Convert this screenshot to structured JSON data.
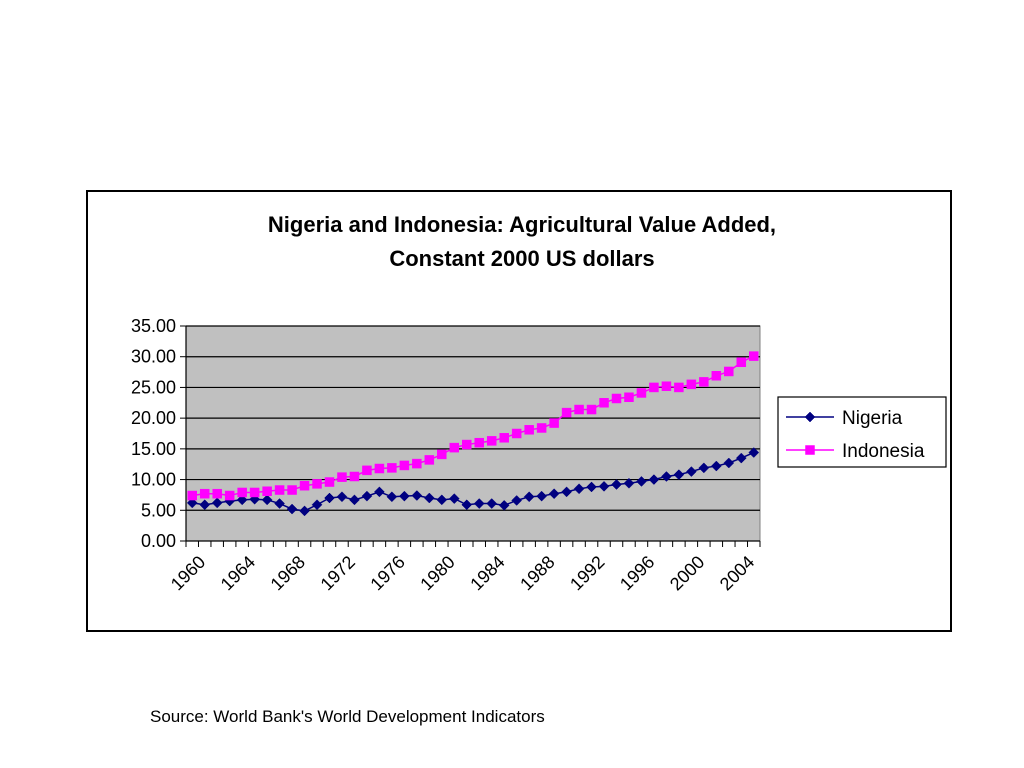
{
  "source_note": "Source: World Bank's World Development Indicators",
  "chart_data": {
    "type": "line",
    "title_lines": [
      "Nigeria and Indonesia: Agricultural Value Added,",
      "Constant 2000 US dollars"
    ],
    "xlabel": "",
    "ylabel": "",
    "x": [
      1960,
      1961,
      1962,
      1963,
      1964,
      1965,
      1966,
      1967,
      1968,
      1969,
      1970,
      1971,
      1972,
      1973,
      1974,
      1975,
      1976,
      1977,
      1978,
      1979,
      1980,
      1981,
      1982,
      1983,
      1984,
      1985,
      1986,
      1987,
      1988,
      1989,
      1990,
      1991,
      1992,
      1993,
      1994,
      1995,
      1996,
      1997,
      1998,
      1999,
      2000,
      2001,
      2002,
      2003,
      2004,
      2005
    ],
    "x_tick_labels": [
      "1960",
      "1964",
      "1968",
      "1972",
      "1976",
      "1980",
      "1984",
      "1988",
      "1992",
      "1996",
      "2000",
      "2004"
    ],
    "ylim": [
      0,
      35
    ],
    "y_ticks": [
      "0.00",
      "5.00",
      "10.00",
      "15.00",
      "20.00",
      "25.00",
      "30.00",
      "35.00"
    ],
    "grid": true,
    "plot_background": "#c0c0c0",
    "legend_position": "right",
    "series": [
      {
        "name": "Nigeria",
        "color": "#000080",
        "marker": "diamond",
        "values": [
          6.2,
          5.9,
          6.2,
          6.5,
          6.7,
          6.8,
          6.7,
          6.1,
          5.2,
          4.9,
          5.9,
          7.0,
          7.2,
          6.7,
          7.3,
          8.0,
          7.2,
          7.3,
          7.4,
          7.0,
          6.7,
          6.9,
          5.9,
          6.1,
          6.1,
          5.8,
          6.6,
          7.2,
          7.3,
          7.7,
          8.0,
          8.5,
          8.8,
          8.9,
          9.2,
          9.4,
          9.7,
          10.0,
          10.5,
          10.8,
          11.3,
          11.9,
          12.2,
          12.7,
          13.5,
          14.4
        ]
      },
      {
        "name": "Indonesia",
        "color": "#ff00ff",
        "marker": "square",
        "values": [
          7.4,
          7.7,
          7.7,
          7.4,
          7.9,
          7.9,
          8.1,
          8.3,
          8.3,
          9.0,
          9.3,
          9.6,
          10.4,
          10.5,
          11.5,
          11.8,
          11.9,
          12.3,
          12.6,
          13.2,
          14.1,
          15.2,
          15.7,
          16.0,
          16.3,
          16.8,
          17.5,
          18.1,
          18.4,
          19.2,
          20.9,
          21.4,
          21.4,
          22.5,
          23.2,
          23.4,
          24.1,
          25.0,
          25.2,
          25.0,
          25.5,
          25.9,
          26.9,
          27.6,
          29.1,
          30.1
        ]
      }
    ]
  }
}
